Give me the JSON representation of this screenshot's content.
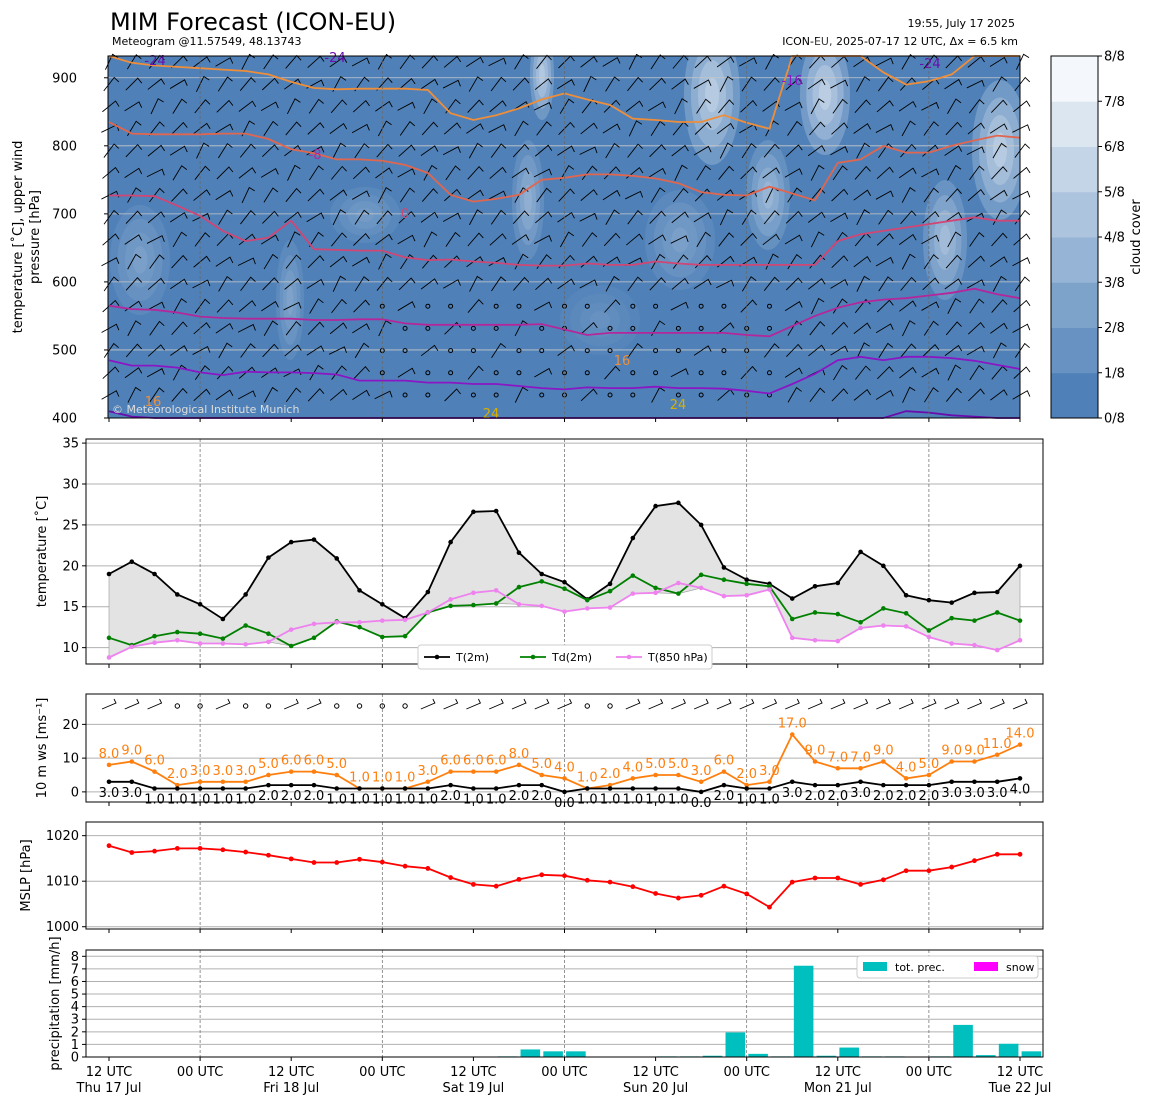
{
  "header": {
    "title": "MIM Forecast (ICON-EU)",
    "subtitle": "Meteogram @11.57549, 48.13743",
    "issued": "19:55, July 17 2025",
    "model_info": "ICON-EU, 2025-07-17 12 UTC, Δx = 6.5 km",
    "copyright": "© Meteorological Institute Munich"
  },
  "colors": {
    "t2m": "#000000",
    "td2m": "#008000",
    "t850": "#ee82ee",
    "ws": "#ff7f0e",
    "mslp": "#ff0000",
    "precip": "#00bfbf",
    "snow": "#ff00ff",
    "cloud_base": "#4f81b8"
  },
  "x_axis": {
    "ticks": [
      "12 UTC",
      "00 UTC",
      "12 UTC",
      "00 UTC",
      "12 UTC",
      "00 UTC",
      "12 UTC",
      "00 UTC",
      "12 UTC",
      "00 UTC",
      "12 UTC"
    ],
    "days": [
      "Thu 17 Jul",
      "Fri 18 Jul",
      "Sat 19 Jul",
      "Sun 20 Jul",
      "Mon 21 Jul",
      "Tue 22 Jul"
    ]
  },
  "chart_data": [
    {
      "type": "heatmap",
      "ylabel": "temperature [°C], upper wind pressure [hPa]",
      "yticks": [
        400,
        500,
        600,
        700,
        800,
        900
      ],
      "ylim": [
        932,
        400
      ],
      "colorbar": {
        "label": "cloud cover",
        "ticks": [
          "0/8",
          "1/8",
          "2/8",
          "3/8",
          "4/8",
          "5/8",
          "6/8",
          "7/8",
          "8/8"
        ]
      },
      "isotherm_labels": [
        "-24",
        "-24",
        "-16",
        "-24",
        "-8",
        "0",
        "-16",
        "8",
        "16",
        "24",
        "24"
      ],
      "isotherms": [
        {
          "label": "-24",
          "color": "#6a0dad",
          "y": [
            410,
            402,
            400,
            400,
            400,
            400,
            400,
            400,
            400,
            400,
            400,
            400,
            400,
            400,
            400,
            400,
            400,
            400,
            400,
            400,
            400,
            400,
            400,
            400,
            400,
            400,
            400,
            400,
            400,
            400,
            400,
            400,
            400,
            400,
            400,
            410,
            408,
            404,
            402,
            400,
            400
          ]
        },
        {
          "label": "-16",
          "color": "#8a17c4",
          "y": [
            485,
            477,
            477,
            474,
            467,
            463,
            468,
            467,
            467,
            466,
            464,
            455,
            455,
            455,
            452,
            452,
            450,
            450,
            447,
            444,
            442,
            445,
            444,
            444,
            446,
            444,
            444,
            443,
            440,
            436,
            450,
            465,
            485,
            490,
            485,
            490,
            490,
            488,
            484,
            478,
            472
          ]
        },
        {
          "label": "-8",
          "color": "#b4279b",
          "y": [
            565,
            560,
            559,
            555,
            549,
            547,
            546,
            546,
            546,
            544,
            544,
            545,
            545,
            539,
            537,
            537,
            537,
            537,
            537,
            538,
            530,
            522,
            525,
            525,
            525,
            525,
            525,
            525,
            522,
            520,
            535,
            550,
            562,
            570,
            574,
            576,
            580,
            584,
            590,
            582,
            576
          ]
        },
        {
          "label": "0",
          "color": "#d04674",
          "y": [
            727,
            727,
            726,
            712,
            697,
            675,
            660,
            665,
            690,
            648,
            647,
            646,
            646,
            636,
            632,
            633,
            630,
            628,
            625,
            624,
            624,
            627,
            625,
            625,
            630,
            627,
            625,
            625,
            625,
            625,
            625,
            625,
            660,
            670,
            675,
            680,
            685,
            690,
            695,
            690,
            690
          ]
        },
        {
          "label": "8",
          "color": "#e0664f",
          "y": [
            835,
            818,
            817,
            817,
            817,
            818,
            818,
            810,
            795,
            789,
            780,
            780,
            778,
            772,
            760,
            728,
            718,
            722,
            728,
            750,
            753,
            758,
            758,
            756,
            752,
            745,
            732,
            728,
            727,
            740,
            730,
            720,
            775,
            780,
            800,
            790,
            790,
            800,
            808,
            815,
            812
          ]
        },
        {
          "label": "16",
          "color": "#ee8e3a",
          "y": [
            932,
            922,
            918,
            916,
            914,
            912,
            910,
            905,
            894,
            885,
            883,
            884,
            884,
            884,
            882,
            848,
            838,
            845,
            855,
            868,
            877,
            868,
            860,
            840,
            838,
            835,
            835,
            845,
            834,
            825,
            932,
            932,
            932,
            932,
            908,
            890,
            895,
            905,
            932,
            932,
            932
          ]
        }
      ]
    },
    {
      "type": "line",
      "ylabel": "temperature [°C]",
      "yticks": [
        10,
        15,
        20,
        25,
        30,
        35
      ],
      "ylim": [
        8,
        35.5
      ],
      "legend": "bottom-center",
      "series": [
        {
          "name": "T(2m)",
          "values": [
            19.0,
            20.5,
            19.0,
            16.5,
            15.3,
            13.5,
            16.5,
            21.0,
            22.9,
            23.2,
            20.9,
            17.0,
            15.3,
            13.6,
            16.8,
            22.9,
            26.6,
            26.7,
            21.6,
            19.0,
            18.0,
            15.9,
            17.8,
            23.4,
            27.3,
            27.7,
            25.0,
            19.8,
            18.3,
            17.8,
            16.0,
            17.5,
            17.9,
            21.7,
            20.0,
            16.4,
            15.8,
            15.5,
            16.7,
            16.8,
            20.0
          ]
        },
        {
          "name": "Td(2m)",
          "values": [
            11.2,
            10.3,
            11.4,
            11.9,
            11.7,
            11.1,
            12.7,
            11.7,
            10.2,
            11.2,
            13.2,
            12.5,
            11.3,
            11.4,
            14.3,
            15.1,
            15.2,
            15.4,
            17.4,
            18.1,
            17.2,
            15.8,
            16.9,
            18.8,
            17.3,
            16.6,
            18.9,
            18.3,
            17.8,
            17.5,
            13.5,
            14.3,
            14.1,
            13.1,
            14.8,
            14.2,
            12.1,
            13.6,
            13.3,
            14.3,
            13.3
          ]
        },
        {
          "name": "T(850 hPa)",
          "values": [
            8.8,
            10.1,
            10.6,
            10.9,
            10.5,
            10.5,
            10.4,
            10.7,
            12.2,
            12.9,
            13.1,
            13.1,
            13.3,
            13.4,
            14.3,
            15.9,
            16.7,
            17.0,
            15.3,
            15.1,
            14.4,
            14.8,
            14.9,
            16.6,
            16.7,
            17.9,
            17.3,
            16.3,
            16.4,
            17.1,
            11.2,
            10.9,
            10.8,
            12.4,
            12.7,
            12.6,
            11.3,
            10.5,
            10.3,
            9.7,
            10.9
          ]
        }
      ]
    },
    {
      "type": "line",
      "ylabel": "10 m ws [ms⁻¹]",
      "yticks": [
        0,
        10,
        20
      ],
      "ylim": [
        -3,
        29
      ],
      "series": [
        {
          "name": "gust",
          "values": [
            8.0,
            9.0,
            6.0,
            2.0,
            3.0,
            3.0,
            3.0,
            5.0,
            6.0,
            6.0,
            5.0,
            1.0,
            1.0,
            1.0,
            3.0,
            6.0,
            6.0,
            6.0,
            8.0,
            5.0,
            4.0,
            1.0,
            2.0,
            4.0,
            5.0,
            5.0,
            3.0,
            6.0,
            2.0,
            3.0,
            17.0,
            9.0,
            7.0,
            7.0,
            9.0,
            4.0,
            5.0,
            9.0,
            9.0,
            11.0,
            14.0
          ]
        },
        {
          "name": "mean",
          "values": [
            3.0,
            3.0,
            1.0,
            1.0,
            1.0,
            1.0,
            1.0,
            2.0,
            2.0,
            2.0,
            1.0,
            1.0,
            1.0,
            1.0,
            1.0,
            2.0,
            1.0,
            1.0,
            2.0,
            2.0,
            0.0,
            1.0,
            1.0,
            1.0,
            1.0,
            1.0,
            0.0,
            2.0,
            1.0,
            1.0,
            3.0,
            2.0,
            2.0,
            3.0,
            2.0,
            2.0,
            2.0,
            3.0,
            3.0,
            3.0,
            4.0
          ]
        }
      ]
    },
    {
      "type": "line",
      "ylabel": "MSLP [hPa]",
      "yticks": [
        1000,
        1010,
        1020
      ],
      "ylim": [
        999.5,
        1023
      ],
      "series": [
        {
          "name": "MSLP",
          "values": [
            1017.8,
            1016.3,
            1016.6,
            1017.2,
            1017.2,
            1016.9,
            1016.4,
            1015.7,
            1014.9,
            1014.1,
            1014.1,
            1014.8,
            1014.2,
            1013.3,
            1012.8,
            1010.8,
            1009.3,
            1008.9,
            1010.4,
            1011.4,
            1011.2,
            1010.2,
            1009.8,
            1008.8,
            1007.3,
            1006.3,
            1006.9,
            1008.9,
            1007.2,
            1004.3,
            1009.8,
            1010.7,
            1010.7,
            1009.3,
            1010.3,
            1012.3,
            1012.3,
            1013.1,
            1014.5,
            1015.9,
            1015.9
          ]
        }
      ]
    },
    {
      "type": "bar",
      "ylabel": "precipitation [mm/h]",
      "yticks": [
        0,
        1,
        2,
        3,
        4,
        5,
        6,
        7,
        8
      ],
      "ylim": [
        0,
        8.5
      ],
      "legend": "top-right",
      "series": [
        {
          "name": "tot. prec.",
          "values": [
            0,
            0,
            0,
            0,
            0,
            0,
            0,
            0,
            0,
            0,
            0,
            0,
            0,
            0,
            0,
            0,
            0,
            0.05,
            0.6,
            0.45,
            0.45,
            0,
            0,
            0,
            0.05,
            0.05,
            0.1,
            1.95,
            0.25,
            0.05,
            7.25,
            0.1,
            0.75,
            0.05,
            0.05,
            0,
            0.05,
            2.55,
            0.15,
            1.05,
            0.45
          ]
        },
        {
          "name": "snow",
          "values": [
            0,
            0,
            0,
            0,
            0,
            0,
            0,
            0,
            0,
            0,
            0,
            0,
            0,
            0,
            0,
            0,
            0,
            0,
            0,
            0,
            0,
            0,
            0,
            0,
            0,
            0,
            0,
            0,
            0,
            0,
            0,
            0,
            0,
            0,
            0,
            0,
            0,
            0,
            0,
            0,
            0
          ]
        }
      ]
    }
  ]
}
